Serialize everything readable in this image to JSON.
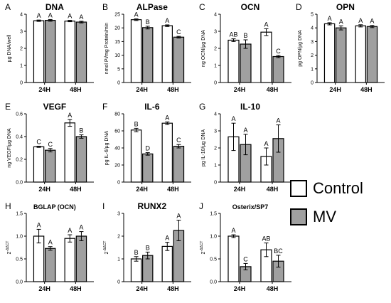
{
  "colors": {
    "control": "#ffffff",
    "mv": "#a0a0a0",
    "ink": "#000000"
  },
  "legend": {
    "control_label": "Control",
    "mv_label": "MV"
  },
  "chart_data": [
    {
      "type": "bar",
      "panel": "A",
      "title": "DNA",
      "ylabel": "µg DNA/well",
      "ylim": [
        0,
        4
      ],
      "yticks": [
        0,
        1,
        2,
        3,
        4
      ],
      "categories": [
        "24H",
        "48H"
      ],
      "series": [
        {
          "name": "Control",
          "values": [
            3.62,
            3.6
          ],
          "errors": [
            0.04,
            0.04
          ]
        },
        {
          "name": "MV",
          "values": [
            3.64,
            3.54
          ],
          "errors": [
            0.05,
            0.05
          ]
        }
      ],
      "letters": [
        [
          "A",
          "A"
        ],
        [
          "A",
          "A"
        ]
      ]
    },
    {
      "type": "bar",
      "panel": "B",
      "title": "ALPase",
      "ylabel": "nmol Pi/mg Protein/min",
      "ylim": [
        0,
        25
      ],
      "yticks": [
        0,
        5,
        10,
        15,
        20,
        25
      ],
      "categories": [
        "24H",
        "48H"
      ],
      "series": [
        {
          "name": "Control",
          "values": [
            23.0,
            20.8
          ],
          "errors": [
            0.3,
            0.3
          ]
        },
        {
          "name": "MV",
          "values": [
            20.1,
            16.6
          ],
          "errors": [
            0.5,
            0.3
          ]
        }
      ],
      "letters": [
        [
          "A",
          "A"
        ],
        [
          "B",
          "C"
        ]
      ]
    },
    {
      "type": "bar",
      "panel": "C",
      "title": "OCN",
      "ylabel": "ng OCN/µg DNA",
      "ylim": [
        0,
        4
      ],
      "yticks": [
        0,
        1,
        2,
        3,
        4
      ],
      "categories": [
        "24H",
        "48H"
      ],
      "series": [
        {
          "name": "Control",
          "values": [
            2.48,
            2.95
          ],
          "errors": [
            0.08,
            0.2
          ]
        },
        {
          "name": "MV",
          "values": [
            2.25,
            1.52
          ],
          "errors": [
            0.25,
            0.06
          ]
        }
      ],
      "letters": [
        [
          "AB",
          "A"
        ],
        [
          "B",
          "C"
        ]
      ]
    },
    {
      "type": "bar",
      "panel": "D",
      "title": "OPN",
      "ylabel": "pg OPN/µg DNA",
      "ylim": [
        0,
        5
      ],
      "yticks": [
        0,
        1,
        2,
        3,
        4,
        5
      ],
      "categories": [
        "24H",
        "48H"
      ],
      "series": [
        {
          "name": "Control",
          "values": [
            4.3,
            4.15
          ],
          "errors": [
            0.08,
            0.08
          ]
        },
        {
          "name": "MV",
          "values": [
            4.0,
            4.1
          ],
          "errors": [
            0.15,
            0.08
          ]
        }
      ],
      "letters": [
        [
          "A",
          "A"
        ],
        [
          "A",
          "A"
        ]
      ]
    },
    {
      "type": "bar",
      "panel": "E",
      "title": "VEGF",
      "ylabel": "ng VEGF/µg DNA",
      "ylim": [
        0,
        0.6
      ],
      "yticks": [
        0.0,
        0.2,
        0.4,
        0.6
      ],
      "categories": [
        "24H",
        "48H"
      ],
      "series": [
        {
          "name": "Control",
          "values": [
            0.31,
            0.52
          ],
          "errors": [
            0.005,
            0.03
          ]
        },
        {
          "name": "MV",
          "values": [
            0.28,
            0.4
          ],
          "errors": [
            0.015,
            0.015
          ]
        }
      ],
      "letters": [
        [
          "C",
          "A"
        ],
        [
          "C",
          "B"
        ]
      ]
    },
    {
      "type": "bar",
      "panel": "F",
      "title": "IL-6",
      "ylabel": "pg IL-6/µg DNA",
      "ylim": [
        0,
        80
      ],
      "yticks": [
        0,
        20,
        40,
        60,
        80
      ],
      "categories": [
        "24H",
        "48H"
      ],
      "series": [
        {
          "name": "Control",
          "values": [
            61,
            69
          ],
          "errors": [
            2.0,
            1.5
          ]
        },
        {
          "name": "MV",
          "values": [
            33,
            42
          ],
          "errors": [
            1.5,
            2.0
          ]
        }
      ],
      "letters": [
        [
          "B",
          "A"
        ],
        [
          "D",
          "C"
        ]
      ]
    },
    {
      "type": "bar",
      "panel": "G",
      "title": "IL-10",
      "ylabel": "pg IL-10/µg DNA",
      "ylim": [
        0,
        4
      ],
      "yticks": [
        0,
        1,
        2,
        3,
        4
      ],
      "categories": [
        "24H",
        "48H"
      ],
      "series": [
        {
          "name": "Control",
          "values": [
            2.65,
            1.5
          ],
          "errors": [
            0.8,
            0.5
          ]
        },
        {
          "name": "MV",
          "values": [
            2.2,
            2.55
          ],
          "errors": [
            0.6,
            0.8
          ]
        }
      ],
      "letters": [
        [
          "A",
          "A"
        ],
        [
          "A",
          "A"
        ]
      ]
    },
    {
      "type": "bar",
      "panel": "H",
      "title": "BGLAP (OCN)",
      "ylabel": "2^-ΔΔCT",
      "ylim": [
        0,
        1.5
      ],
      "yticks": [
        0.0,
        0.5,
        1.0,
        1.5
      ],
      "categories": [
        "24H",
        "48H"
      ],
      "series": [
        {
          "name": "Control",
          "values": [
            1.0,
            0.95
          ],
          "errors": [
            0.15,
            0.08
          ]
        },
        {
          "name": "MV",
          "values": [
            0.73,
            1.0
          ],
          "errors": [
            0.04,
            0.1
          ]
        }
      ],
      "letters": [
        [
          "A",
          "A"
        ],
        [
          "A",
          "A"
        ]
      ]
    },
    {
      "type": "bar",
      "panel": "I",
      "title": "RUNX2",
      "ylabel": "2^-ΔΔCT",
      "ylim": [
        0,
        3
      ],
      "yticks": [
        0,
        1,
        2,
        3
      ],
      "categories": [
        "24H",
        "48H"
      ],
      "series": [
        {
          "name": "Control",
          "values": [
            1.0,
            1.55
          ],
          "errors": [
            0.1,
            0.18
          ]
        },
        {
          "name": "MV",
          "values": [
            1.15,
            2.25
          ],
          "errors": [
            0.15,
            0.45
          ]
        }
      ],
      "letters": [
        [
          "B",
          "A"
        ],
        [
          "B",
          "A"
        ]
      ]
    },
    {
      "type": "bar",
      "panel": "J",
      "title": "Osterix/SP7",
      "ylabel": "2^-ΔΔCT",
      "ylim": [
        0,
        1.5
      ],
      "yticks": [
        0.0,
        0.5,
        1.0,
        1.5
      ],
      "categories": [
        "24H",
        "48H"
      ],
      "series": [
        {
          "name": "Control",
          "values": [
            1.0,
            0.7
          ],
          "errors": [
            0.03,
            0.15
          ]
        },
        {
          "name": "MV",
          "values": [
            0.33,
            0.45
          ],
          "errors": [
            0.07,
            0.13
          ]
        }
      ],
      "letters": [
        [
          "A",
          "AB"
        ],
        [
          "C",
          "BC"
        ]
      ]
    }
  ]
}
